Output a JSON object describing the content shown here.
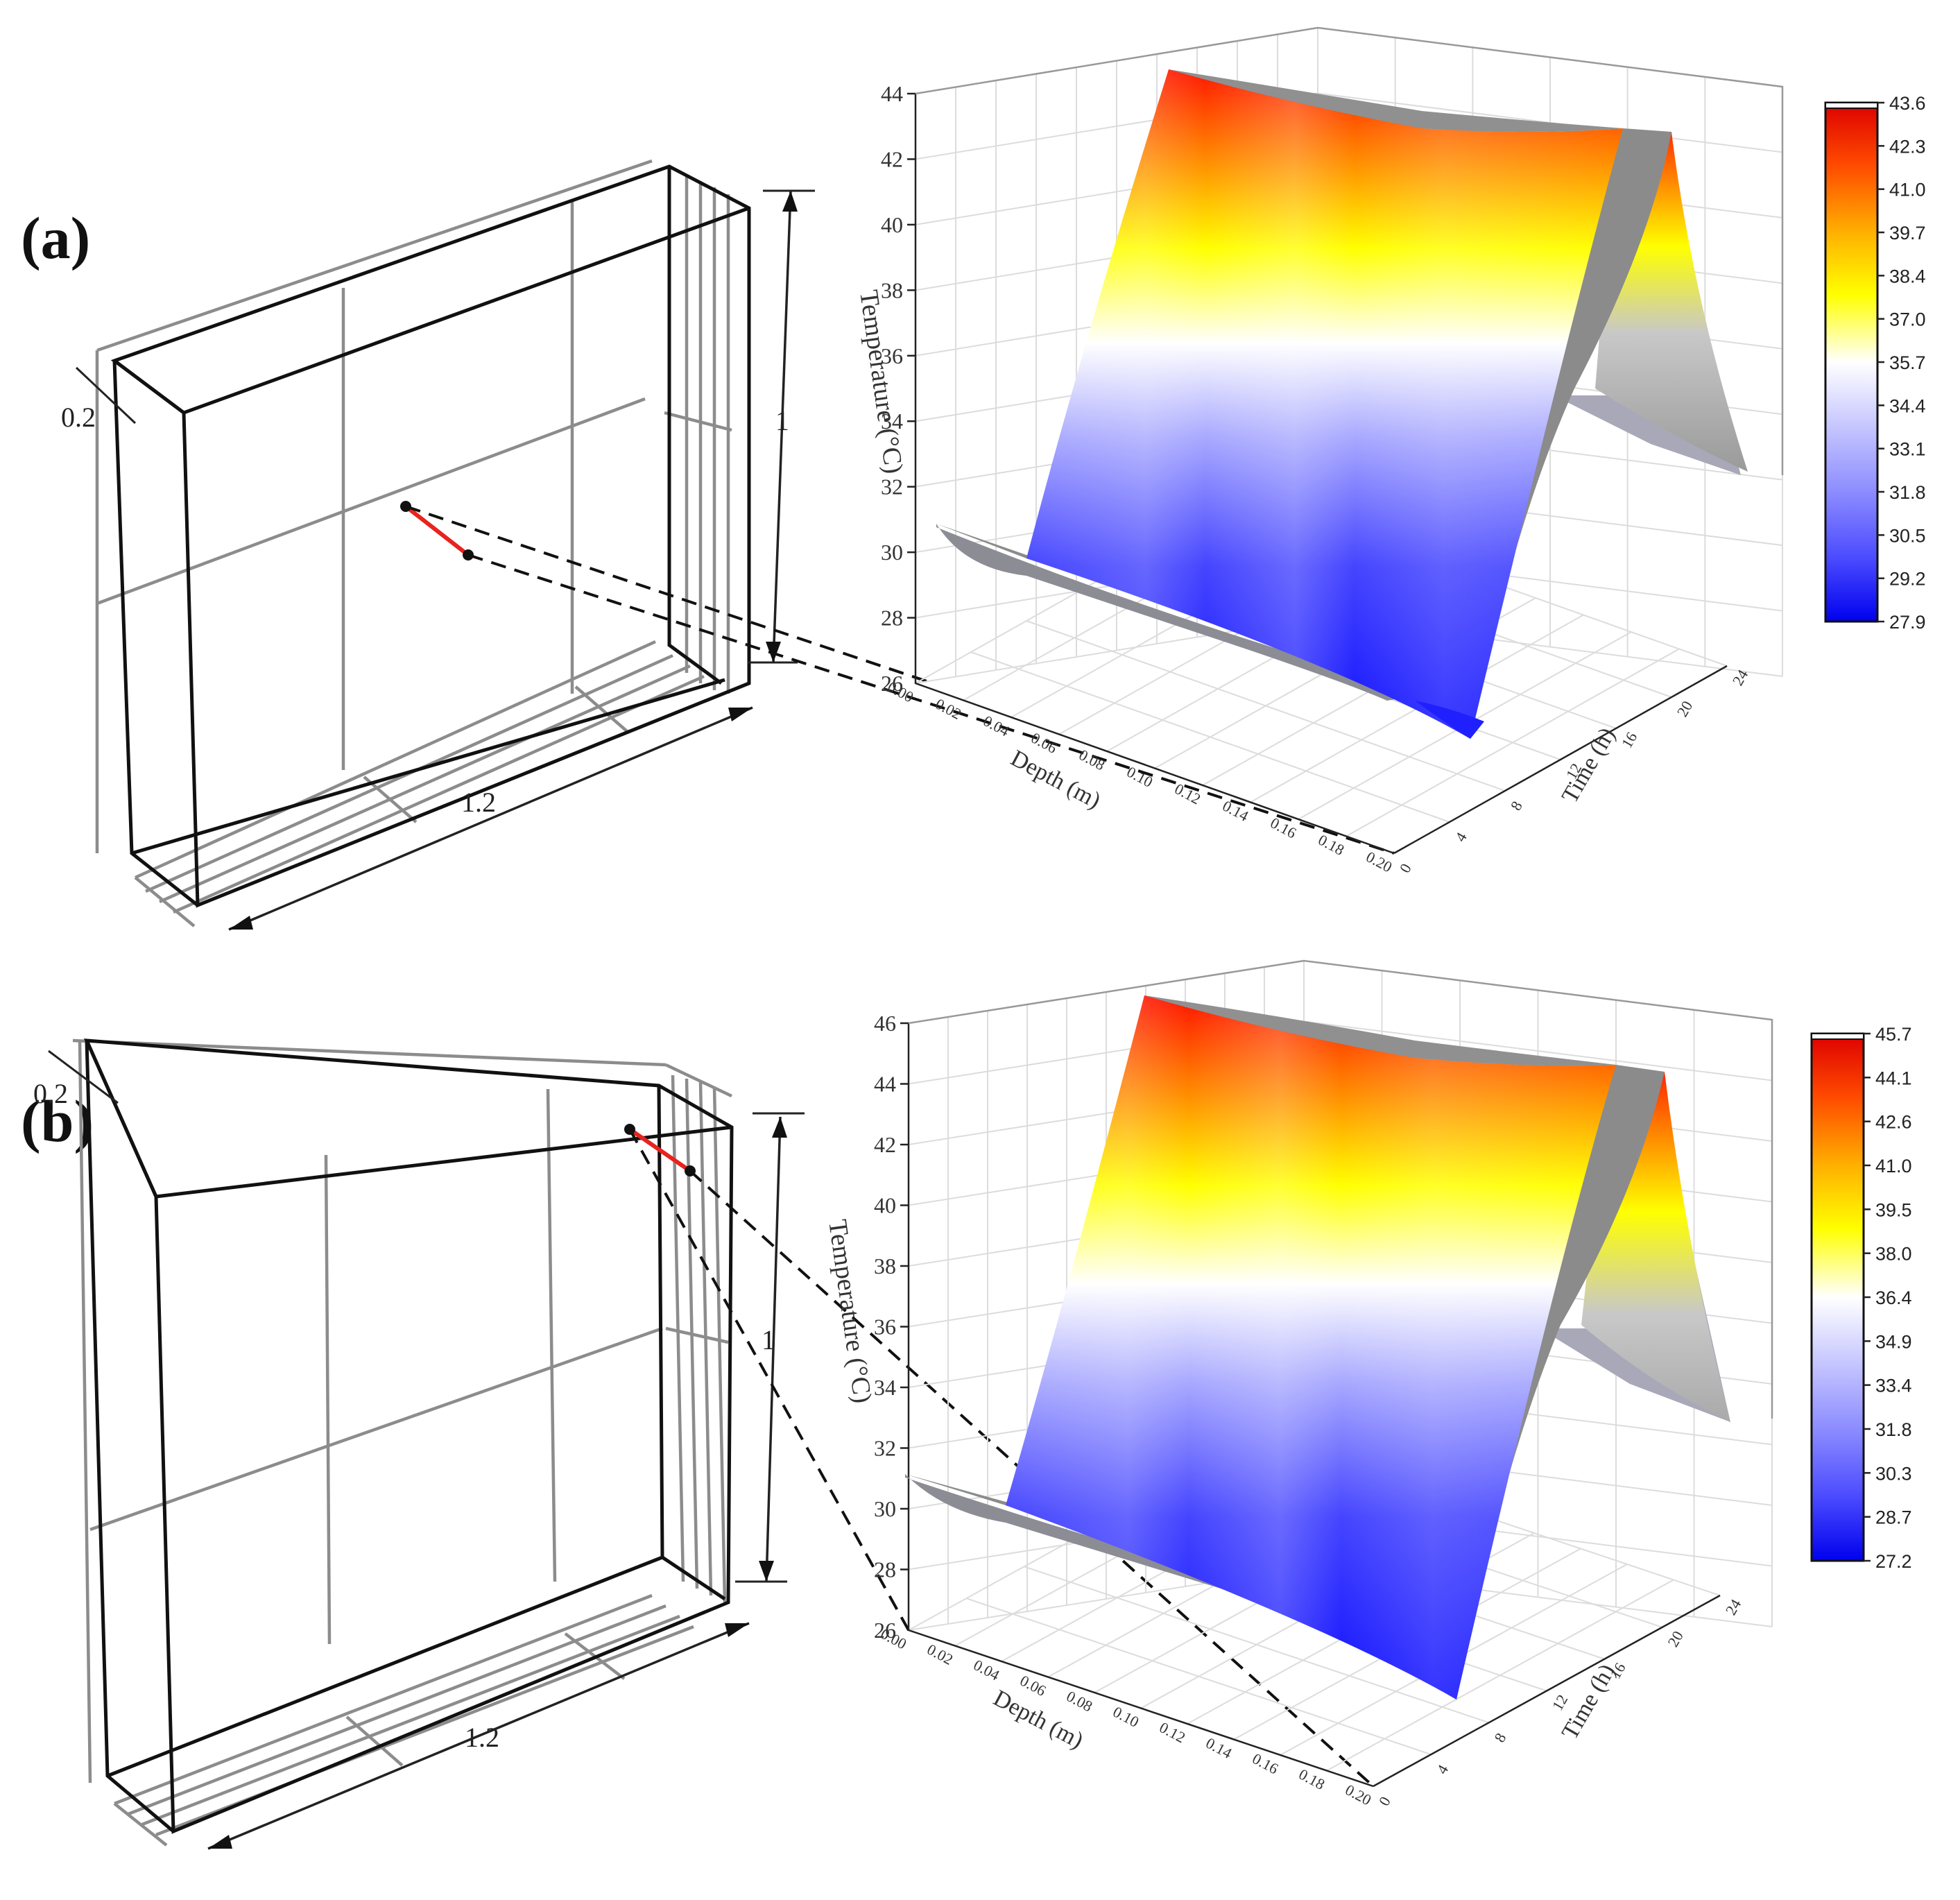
{
  "panels": [
    {
      "label": "(a)",
      "dims": {
        "width": "1.2",
        "height": "1",
        "depth": "0.2"
      },
      "chart_data": {
        "type": "surface3d",
        "zlabel": "Temperature (°C)",
        "xlabel": "Depth (m)",
        "ylabel": "Time (h)",
        "zlim": [
          26,
          44
        ],
        "z_ticks": [
          "28",
          "30",
          "32",
          "34",
          "36",
          "38",
          "40",
          "42",
          "44"
        ],
        "x_ticks": [
          "0.00",
          "0.02",
          "0.04",
          "0.06",
          "0.08",
          "0.10",
          "0.12",
          "0.14",
          "0.16",
          "0.18",
          "0.20"
        ],
        "y_ticks": [
          "0",
          "4",
          "8",
          "12",
          "16",
          "20",
          "24"
        ],
        "depth_profile": {
          "depth": [
            0.0,
            0.02,
            0.04,
            0.06,
            0.08,
            0.1,
            0.12,
            0.14,
            0.16,
            0.18,
            0.2
          ],
          "min_temp": [
            31.0,
            30.3,
            29.9,
            29.5,
            29.2,
            28.9,
            28.6,
            28.3,
            28.1,
            27.9,
            28.1
          ],
          "max_temp": [
            43.6,
            43.0,
            42.6,
            42.3,
            42.1,
            42.0,
            42.1,
            42.3,
            42.6,
            43.0,
            43.6
          ]
        },
        "colorbar": {
          "min": 27.9,
          "max": 43.6,
          "ticks": [
            "43.6",
            "42.3",
            "41.0",
            "39.7",
            "38.4",
            "37.0",
            "35.7",
            "34.4",
            "33.1",
            "31.8",
            "30.5",
            "29.2",
            "27.9"
          ]
        }
      }
    },
    {
      "label": "(b)",
      "dims": {
        "width": "1.2",
        "height": "1",
        "depth": "0.2"
      },
      "chart_data": {
        "type": "surface3d",
        "zlabel": "Temperature (°C)",
        "xlabel": "Depth (m)",
        "ylabel": "Time (h)",
        "zlim": [
          26,
          46
        ],
        "z_ticks": [
          "28",
          "30",
          "32",
          "34",
          "36",
          "38",
          "40",
          "42",
          "44",
          "46"
        ],
        "x_ticks": [
          "0.00",
          "0.02",
          "0.04",
          "0.06",
          "0.08",
          "0.10",
          "0.12",
          "0.14",
          "0.16",
          "0.18",
          "0.20"
        ],
        "y_ticks": [
          "0",
          "4",
          "8",
          "12",
          "16",
          "20",
          "24"
        ],
        "depth_profile": {
          "depth": [
            0.0,
            0.02,
            0.04,
            0.06,
            0.08,
            0.1,
            0.12,
            0.14,
            0.16,
            0.18,
            0.2
          ],
          "min_temp": [
            31.0,
            30.2,
            29.6,
            29.1,
            28.7,
            28.3,
            27.9,
            27.6,
            27.4,
            27.2,
            27.5
          ],
          "max_temp": [
            45.7,
            45.0,
            44.5,
            44.1,
            43.9,
            43.8,
            43.9,
            44.1,
            44.5,
            45.0,
            45.7
          ]
        },
        "colorbar": {
          "min": 27.2,
          "max": 45.7,
          "ticks": [
            "45.7",
            "44.1",
            "42.6",
            "41.0",
            "39.5",
            "38.0",
            "36.4",
            "34.9",
            "33.4",
            "31.8",
            "30.3",
            "28.7",
            "27.2"
          ]
        }
      }
    }
  ],
  "colors": {
    "hot": "#ff1a00",
    "warm": "#ffff00",
    "neutral": "#ffffff",
    "cool": "#8c8cff",
    "cold": "#1515ff",
    "sensor_line": "#e8231f",
    "back_face": "#8a8a8a"
  }
}
